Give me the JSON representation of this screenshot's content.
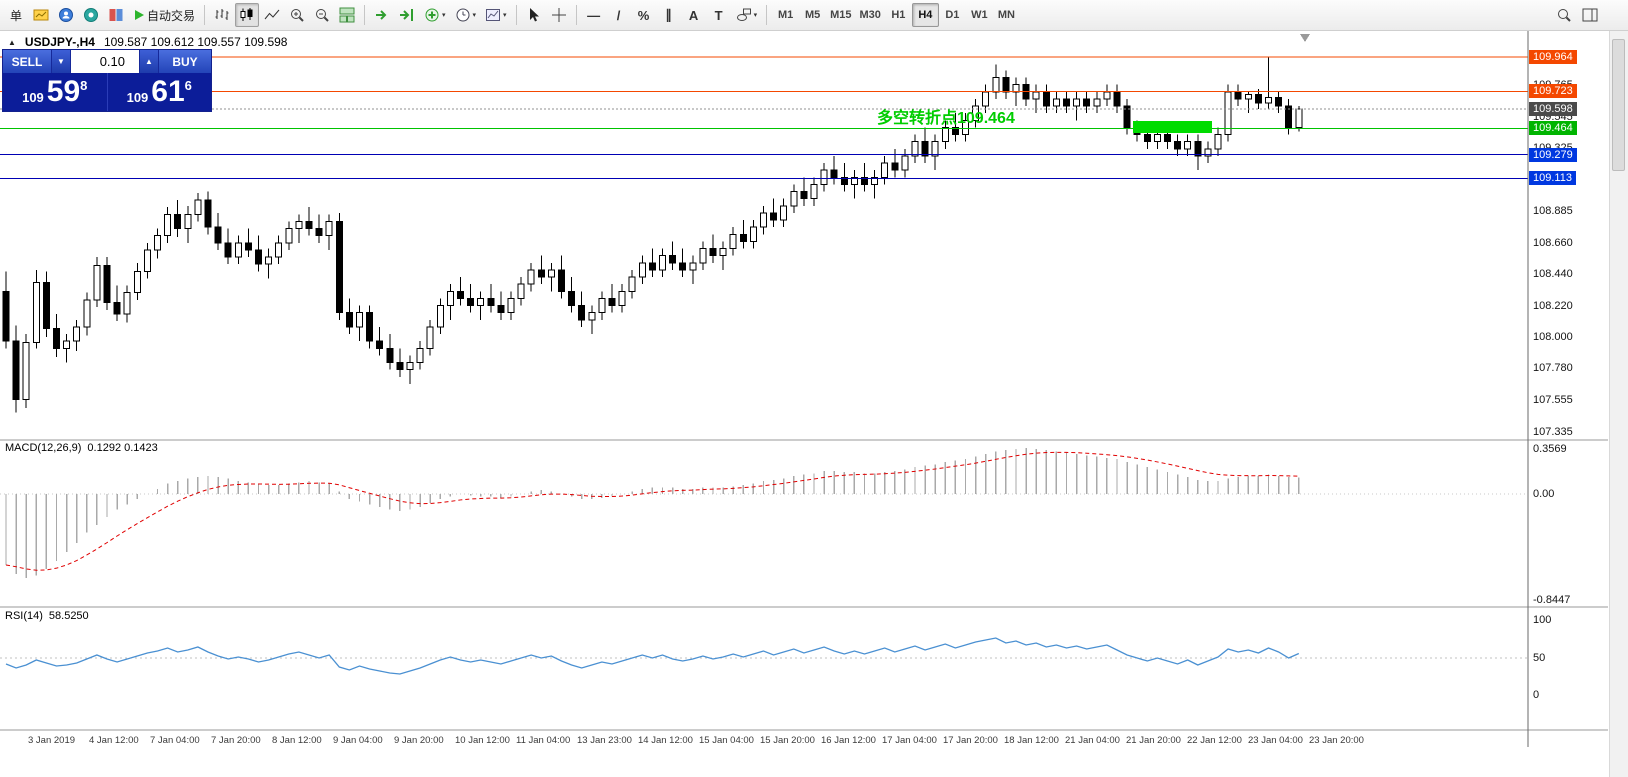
{
  "toolbar": {
    "order_label": "单",
    "autotrading_label": "自动交易",
    "glyphs": {
      "caret": "▾",
      "hline": "—",
      "trendline": "/",
      "fibo": "%",
      "channel": "∥",
      "text_tool": "A",
      "label_tool": "T"
    },
    "timeframes": [
      "M1",
      "M5",
      "M15",
      "M30",
      "H1",
      "H4",
      "D1",
      "W1",
      "MN"
    ],
    "active_timeframe": "H4"
  },
  "chart": {
    "title_arrow": "▲",
    "symbol_period": "USDJPY-,H4",
    "ohlc_text": "109.587 109.612 109.557 109.598",
    "one_click": {
      "sell_label": "SELL",
      "buy_label": "BUY",
      "volume": "0.10",
      "down_arrow": "▼",
      "up_arrow": "▲",
      "bid_prefix": "109",
      "bid_big": "59",
      "bid_sup": "8",
      "ask_prefix": "109",
      "ask_big": "61",
      "ask_sup": "6"
    },
    "annotation": {
      "text": "多空转折点109.464",
      "color": "#00cd00"
    },
    "levels": [
      {
        "price": 109.964,
        "color": "#f44800",
        "style": "solid"
      },
      {
        "price": 109.723,
        "color": "#f44800",
        "style": "solid"
      },
      {
        "price": 109.598,
        "color": "#909090",
        "style": "dotted"
      },
      {
        "price": 109.464,
        "color": "#00c400",
        "style": "solid"
      },
      {
        "price": 109.279,
        "color": "#0000b4",
        "style": "solid"
      },
      {
        "price": 109.113,
        "color": "#0000b4",
        "style": "solid"
      }
    ],
    "highlight": {
      "start_index": 112,
      "end_index": 119,
      "price_top": 109.515,
      "price_bottom": 109.43,
      "color": "#00dc00"
    },
    "price_scale": {
      "regular": [
        "109.765",
        "109.545",
        "109.325",
        "108.885",
        "108.660",
        "108.440",
        "108.220",
        "108.000",
        "107.780",
        "107.555",
        "107.335"
      ],
      "badges": [
        {
          "text": "109.964",
          "bg": "#f44800"
        },
        {
          "text": "109.723",
          "bg": "#f44800"
        },
        {
          "text": "109.598",
          "bg": "#4a4a4a"
        },
        {
          "text": "109.464",
          "bg": "#00b400"
        },
        {
          "text": "109.279",
          "bg": "#0038e0"
        },
        {
          "text": "109.113",
          "bg": "#0038e0"
        }
      ]
    }
  },
  "chart_data": {
    "type": "candlestick",
    "symbol": "USDJPY-",
    "timeframe": "H4",
    "ohlc_display": {
      "open": "109.587",
      "high": "109.612",
      "low": "109.557",
      "close": "109.598"
    },
    "price_axis_visible_range": [
      107.335,
      110.03
    ],
    "time_labels": [
      "3 Jan 2019",
      "4 Jan 12:00",
      "7 Jan 04:00",
      "7 Jan 20:00",
      "8 Jan 12:00",
      "9 Jan 04:00",
      "9 Jan 20:00",
      "10 Jan 12:00",
      "11 Jan 04:00",
      "13 Jan 23:00",
      "14 Jan 12:00",
      "15 Jan 04:00",
      "15 Jan 20:00",
      "16 Jan 12:00",
      "17 Jan 04:00",
      "17 Jan 20:00",
      "18 Jan 12:00",
      "21 Jan 04:00",
      "21 Jan 20:00",
      "22 Jan 12:00",
      "23 Jan 04:00",
      "23 Jan 20:00"
    ],
    "candles": [
      [
        108.32,
        108.46,
        107.92,
        107.97
      ],
      [
        107.97,
        108.08,
        107.47,
        107.56
      ],
      [
        107.56,
        108.02,
        107.5,
        107.96
      ],
      [
        107.96,
        108.47,
        107.92,
        108.38
      ],
      [
        108.38,
        108.46,
        108.0,
        108.06
      ],
      [
        108.06,
        108.16,
        107.86,
        107.92
      ],
      [
        107.92,
        108.02,
        107.82,
        107.97
      ],
      [
        107.97,
        108.12,
        107.9,
        108.07
      ],
      [
        108.07,
        108.31,
        108.01,
        108.26
      ],
      [
        108.26,
        108.56,
        108.21,
        108.5
      ],
      [
        108.5,
        108.56,
        108.19,
        108.24
      ],
      [
        108.24,
        108.36,
        108.11,
        108.16
      ],
      [
        108.16,
        108.36,
        108.1,
        108.31
      ],
      [
        108.31,
        108.52,
        108.26,
        108.46
      ],
      [
        108.46,
        108.66,
        108.41,
        108.61
      ],
      [
        108.61,
        108.76,
        108.55,
        108.71
      ],
      [
        108.71,
        108.91,
        108.66,
        108.86
      ],
      [
        108.86,
        108.96,
        108.7,
        108.76
      ],
      [
        108.76,
        108.92,
        108.66,
        108.86
      ],
      [
        108.86,
        109.01,
        108.81,
        108.96
      ],
      [
        108.96,
        109.02,
        108.72,
        108.77
      ],
      [
        108.77,
        108.87,
        108.61,
        108.66
      ],
      [
        108.66,
        108.76,
        108.51,
        108.56
      ],
      [
        108.56,
        108.71,
        108.51,
        108.66
      ],
      [
        108.66,
        108.76,
        108.56,
        108.61
      ],
      [
        108.61,
        108.71,
        108.46,
        108.51
      ],
      [
        108.51,
        108.62,
        108.41,
        108.56
      ],
      [
        108.56,
        108.71,
        108.51,
        108.66
      ],
      [
        108.66,
        108.81,
        108.61,
        108.76
      ],
      [
        108.76,
        108.86,
        108.66,
        108.81
      ],
      [
        108.81,
        108.91,
        108.71,
        108.76
      ],
      [
        108.76,
        108.86,
        108.66,
        108.71
      ],
      [
        108.71,
        108.86,
        108.61,
        108.81
      ],
      [
        108.81,
        108.87,
        108.12,
        108.17
      ],
      [
        108.17,
        108.27,
        108.02,
        108.07
      ],
      [
        108.07,
        108.22,
        107.97,
        108.17
      ],
      [
        108.17,
        108.22,
        107.92,
        107.97
      ],
      [
        107.97,
        108.07,
        107.87,
        107.92
      ],
      [
        107.92,
        108.02,
        107.77,
        107.82
      ],
      [
        107.82,
        107.92,
        107.72,
        107.77
      ],
      [
        107.77,
        107.87,
        107.67,
        107.82
      ],
      [
        107.82,
        107.97,
        107.77,
        107.92
      ],
      [
        107.92,
        108.12,
        107.87,
        108.07
      ],
      [
        108.07,
        108.27,
        108.02,
        108.22
      ],
      [
        108.22,
        108.37,
        108.12,
        108.32
      ],
      [
        108.32,
        108.42,
        108.22,
        108.27
      ],
      [
        108.27,
        108.37,
        108.17,
        108.22
      ],
      [
        108.22,
        108.32,
        108.12,
        108.27
      ],
      [
        108.27,
        108.37,
        108.17,
        108.22
      ],
      [
        108.22,
        108.32,
        108.12,
        108.17
      ],
      [
        108.17,
        108.32,
        108.12,
        108.27
      ],
      [
        108.27,
        108.42,
        108.22,
        108.37
      ],
      [
        108.37,
        108.52,
        108.32,
        108.47
      ],
      [
        108.47,
        108.57,
        108.37,
        108.42
      ],
      [
        108.42,
        108.52,
        108.32,
        108.47
      ],
      [
        108.47,
        108.57,
        108.27,
        108.32
      ],
      [
        108.32,
        108.42,
        108.17,
        108.22
      ],
      [
        108.22,
        108.32,
        108.07,
        108.12
      ],
      [
        108.12,
        108.22,
        108.02,
        108.17
      ],
      [
        108.17,
        108.32,
        108.12,
        108.27
      ],
      [
        108.27,
        108.37,
        108.17,
        108.22
      ],
      [
        108.22,
        108.37,
        108.17,
        108.32
      ],
      [
        108.32,
        108.47,
        108.27,
        108.42
      ],
      [
        108.42,
        108.57,
        108.37,
        108.52
      ],
      [
        108.52,
        108.62,
        108.42,
        108.47
      ],
      [
        108.47,
        108.62,
        108.42,
        108.57
      ],
      [
        108.57,
        108.67,
        108.47,
        108.52
      ],
      [
        108.52,
        108.62,
        108.42,
        108.47
      ],
      [
        108.47,
        108.57,
        108.37,
        108.52
      ],
      [
        108.52,
        108.67,
        108.47,
        108.62
      ],
      [
        108.62,
        108.72,
        108.52,
        108.57
      ],
      [
        108.57,
        108.67,
        108.47,
        108.62
      ],
      [
        108.62,
        108.77,
        108.57,
        108.72
      ],
      [
        108.72,
        108.82,
        108.62,
        108.67
      ],
      [
        108.67,
        108.82,
        108.62,
        108.77
      ],
      [
        108.77,
        108.92,
        108.72,
        108.87
      ],
      [
        108.87,
        108.97,
        108.77,
        108.82
      ],
      [
        108.82,
        108.97,
        108.77,
        108.92
      ],
      [
        108.92,
        109.07,
        108.87,
        109.02
      ],
      [
        109.02,
        109.12,
        108.92,
        108.97
      ],
      [
        108.97,
        109.12,
        108.92,
        109.07
      ],
      [
        109.07,
        109.22,
        109.02,
        109.17
      ],
      [
        109.17,
        109.27,
        109.07,
        109.12
      ],
      [
        109.12,
        109.22,
        109.02,
        109.07
      ],
      [
        109.07,
        109.17,
        108.97,
        109.12
      ],
      [
        109.12,
        109.22,
        109.02,
        109.07
      ],
      [
        109.07,
        109.17,
        108.97,
        109.12
      ],
      [
        109.12,
        109.27,
        109.07,
        109.22
      ],
      [
        109.22,
        109.32,
        109.12,
        109.17
      ],
      [
        109.17,
        109.32,
        109.12,
        109.27
      ],
      [
        109.27,
        109.42,
        109.22,
        109.37
      ],
      [
        109.37,
        109.47,
        109.22,
        109.27
      ],
      [
        109.27,
        109.42,
        109.17,
        109.37
      ],
      [
        109.37,
        109.52,
        109.32,
        109.47
      ],
      [
        109.47,
        109.57,
        109.37,
        109.42
      ],
      [
        109.42,
        109.57,
        109.37,
        109.52
      ],
      [
        109.52,
        109.67,
        109.47,
        109.62
      ],
      [
        109.62,
        109.77,
        109.57,
        109.72
      ],
      [
        109.72,
        109.91,
        109.67,
        109.82
      ],
      [
        109.82,
        109.87,
        109.67,
        109.72
      ],
      [
        109.72,
        109.82,
        109.62,
        109.77
      ],
      [
        109.77,
        109.82,
        109.62,
        109.67
      ],
      [
        109.67,
        109.77,
        109.57,
        109.72
      ],
      [
        109.72,
        109.77,
        109.57,
        109.62
      ],
      [
        109.62,
        109.72,
        109.57,
        109.67
      ],
      [
        109.67,
        109.72,
        109.57,
        109.62
      ],
      [
        109.62,
        109.72,
        109.52,
        109.67
      ],
      [
        109.67,
        109.72,
        109.57,
        109.62
      ],
      [
        109.62,
        109.72,
        109.57,
        109.67
      ],
      [
        109.67,
        109.77,
        109.62,
        109.72
      ],
      [
        109.72,
        109.77,
        109.57,
        109.62
      ],
      [
        109.62,
        109.67,
        109.42,
        109.47
      ],
      [
        109.47,
        109.52,
        109.37,
        109.42
      ],
      [
        109.42,
        109.47,
        109.32,
        109.37
      ],
      [
        109.37,
        109.47,
        109.32,
        109.42
      ],
      [
        109.42,
        109.47,
        109.32,
        109.37
      ],
      [
        109.37,
        109.42,
        109.27,
        109.32
      ],
      [
        109.32,
        109.42,
        109.27,
        109.37
      ],
      [
        109.37,
        109.42,
        109.17,
        109.27
      ],
      [
        109.27,
        109.37,
        109.22,
        109.32
      ],
      [
        109.32,
        109.47,
        109.27,
        109.42
      ],
      [
        109.42,
        109.77,
        109.37,
        109.72
      ],
      [
        109.72,
        109.77,
        109.62,
        109.67
      ],
      [
        109.67,
        109.72,
        109.57,
        109.7
      ],
      [
        109.7,
        109.74,
        109.6,
        109.64
      ],
      [
        109.64,
        109.96,
        109.6,
        109.68
      ],
      [
        109.68,
        109.72,
        109.57,
        109.62
      ],
      [
        109.62,
        109.67,
        109.42,
        109.47
      ],
      [
        109.47,
        109.62,
        109.44,
        109.6
      ]
    ],
    "macd": {
      "label": "MACD(12,26,9)",
      "values_text": "0.1292 0.1423",
      "scale": {
        "max": "0.3569",
        "zero": "0.00",
        "min": "-0.8447"
      },
      "values": [
        -0.55,
        -0.62,
        -0.65,
        -0.63,
        -0.58,
        -0.52,
        -0.45,
        -0.38,
        -0.3,
        -0.24,
        -0.18,
        -0.12,
        -0.08,
        -0.04,
        0.0,
        0.04,
        0.08,
        0.1,
        0.12,
        0.13,
        0.14,
        0.13,
        0.12,
        0.1,
        0.09,
        0.08,
        0.07,
        0.07,
        0.08,
        0.09,
        0.1,
        0.09,
        0.08,
        0.02,
        -0.04,
        -0.06,
        -0.08,
        -0.1,
        -0.12,
        -0.13,
        -0.12,
        -0.1,
        -0.07,
        -0.04,
        -0.02,
        0.0,
        -0.01,
        -0.02,
        -0.02,
        -0.03,
        -0.02,
        0.0,
        0.02,
        0.03,
        0.02,
        0.0,
        -0.02,
        -0.04,
        -0.04,
        -0.03,
        -0.02,
        0.0,
        0.02,
        0.04,
        0.05,
        0.05,
        0.05,
        0.04,
        0.04,
        0.05,
        0.05,
        0.05,
        0.06,
        0.07,
        0.08,
        0.1,
        0.11,
        0.12,
        0.14,
        0.15,
        0.16,
        0.18,
        0.18,
        0.17,
        0.17,
        0.16,
        0.16,
        0.17,
        0.18,
        0.19,
        0.21,
        0.22,
        0.23,
        0.25,
        0.26,
        0.27,
        0.29,
        0.31,
        0.33,
        0.34,
        0.35,
        0.356,
        0.35,
        0.34,
        0.33,
        0.32,
        0.31,
        0.3,
        0.29,
        0.28,
        0.27,
        0.25,
        0.23,
        0.21,
        0.19,
        0.17,
        0.15,
        0.13,
        0.11,
        0.1,
        0.1,
        0.12,
        0.13,
        0.14,
        0.14,
        0.15,
        0.14,
        0.13,
        0.129
      ]
    },
    "rsi": {
      "label": "RSI(14)",
      "value_text": "58.5250",
      "scale": [
        "100",
        "50",
        "0"
      ],
      "values": [
        48,
        44,
        47,
        52,
        49,
        46,
        47,
        49,
        53,
        57,
        53,
        50,
        53,
        56,
        59,
        61,
        64,
        60,
        62,
        65,
        60,
        56,
        53,
        55,
        53,
        50,
        52,
        55,
        58,
        60,
        57,
        54,
        57,
        45,
        42,
        46,
        43,
        41,
        39,
        38,
        41,
        44,
        48,
        52,
        55,
        52,
        50,
        52,
        50,
        48,
        51,
        54,
        57,
        54,
        56,
        51,
        47,
        44,
        47,
        50,
        48,
        51,
        54,
        57,
        54,
        57,
        53,
        51,
        53,
        56,
        53,
        55,
        58,
        55,
        58,
        61,
        57,
        60,
        63,
        59,
        62,
        65,
        61,
        58,
        61,
        58,
        61,
        64,
        60,
        63,
        66,
        62,
        65,
        68,
        64,
        67,
        70,
        72,
        74,
        69,
        71,
        67,
        69,
        65,
        67,
        64,
        66,
        63,
        65,
        67,
        62,
        57,
        54,
        51,
        54,
        51,
        48,
        52,
        47,
        51,
        55,
        63,
        60,
        62,
        59,
        64,
        60,
        54,
        58.5
      ]
    }
  }
}
